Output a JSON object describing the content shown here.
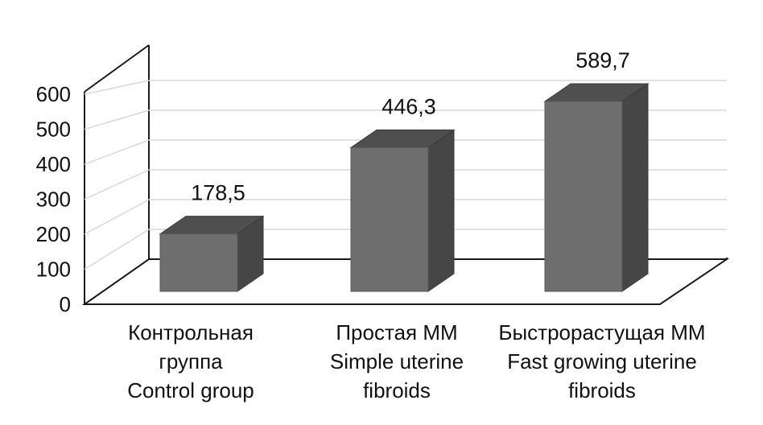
{
  "chart_data": {
    "type": "bar",
    "three_d": true,
    "categories": [
      [
        "Контрольная",
        "группа",
        "Control group"
      ],
      [
        "Простая ММ",
        "Simple uterine",
        "fibroids"
      ],
      [
        "Быстрорастущая ММ",
        "Fast growing uterine",
        "fibroids"
      ]
    ],
    "values": [
      178.5,
      446.3,
      589.7
    ],
    "value_labels": [
      "178,5",
      "446,3",
      "589,7"
    ],
    "y_ticks": [
      "0",
      "100",
      "200",
      "300",
      "400",
      "500",
      "600"
    ],
    "ylim": [
      0,
      600
    ],
    "grid": true,
    "legend": "none",
    "colors": {
      "bar_front": "#6e6e6e",
      "bar_top": "#4f4f4f",
      "bar_side": "#464646",
      "axis": "#1a1a1a",
      "grid": "#d9d9d9"
    }
  }
}
